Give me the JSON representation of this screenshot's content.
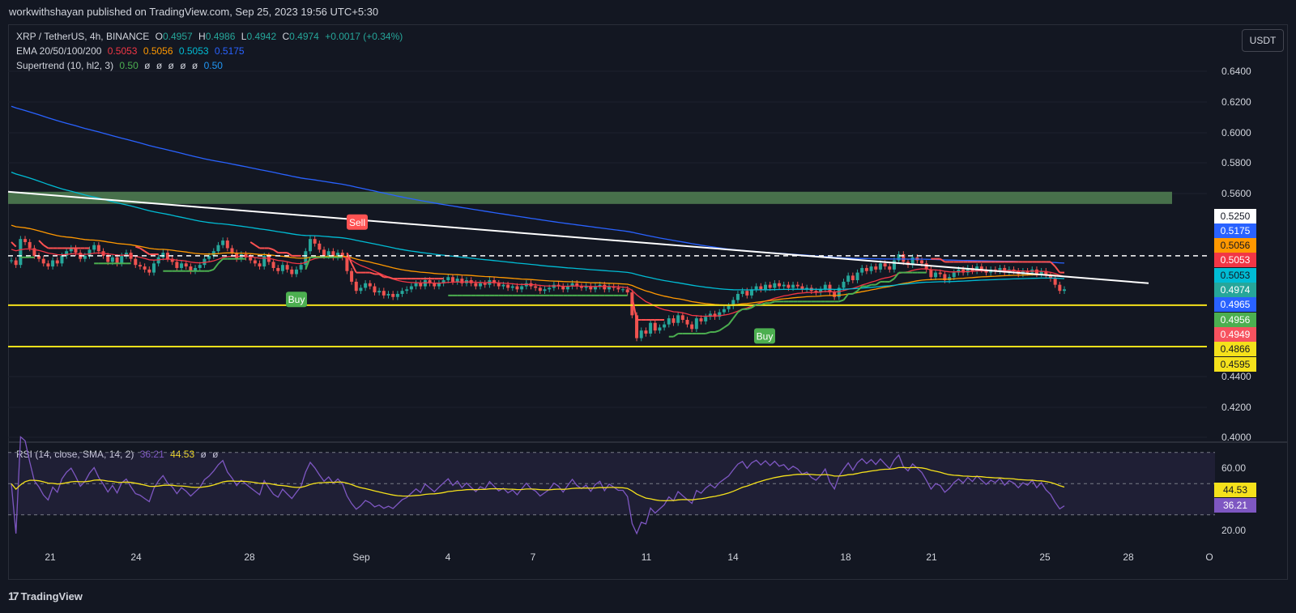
{
  "publish_line": "workwithshayan published on TradingView.com, Sep 25, 2023 19:56 UTC+5:30",
  "legend": {
    "symbol": "XRP / TetherUS, 4h, BINANCE",
    "o_label": "O",
    "o_val": "0.4957",
    "h_label": "H",
    "h_val": "0.4986",
    "l_label": "L",
    "l_val": "0.4942",
    "c_label": "C",
    "c_val": "0.4974",
    "change": "+0.0017 (+0.34%)",
    "ema_label": "EMA 20/50/100/200",
    "ema_vals": [
      "0.5053",
      "0.5056",
      "0.5053",
      "0.5175"
    ],
    "supertrend_label": "Supertrend (10, hl2, 3)",
    "supertrend_vals": [
      "0.50",
      "ø",
      "ø",
      "ø",
      "ø",
      "ø",
      "0.50"
    ],
    "rsi_label": "RSI (14, close, SMA, 14, 2)",
    "rsi_vals": [
      "36.21",
      "44.53",
      "ø",
      "ø"
    ]
  },
  "currency_button": "USDT",
  "footer_brand": "TradingView",
  "colors": {
    "bg": "#131722",
    "up": "#26a69a",
    "down": "#ef5350",
    "ema20": "#f23645",
    "ema50": "#ff9800",
    "ema100": "#00bcd4",
    "ema200": "#2962ff",
    "supertrend_up": "#4caf50",
    "supertrend_down": "#ff5252",
    "trendline": "#ffffff",
    "support": "#f5e11b",
    "rsi": "#7e57c2",
    "rsi_ma": "#f5e11b"
  },
  "chart_data": {
    "type": "candlestick",
    "y_axis": {
      "ticks": [
        "0.6400",
        "0.6200",
        "0.6000",
        "0.5800",
        "0.5600",
        "0.4400",
        "0.4200",
        "0.4000"
      ],
      "ylim": [
        0.3995,
        0.665
      ]
    },
    "x_axis": {
      "ticks": [
        "21",
        "24",
        "28",
        "Sep",
        "4",
        "7",
        "11",
        "14",
        "18",
        "21",
        "25",
        "28",
        "O"
      ]
    },
    "price_labels": [
      {
        "value": "0.5250",
        "color": "#ffffff",
        "text": "#131722"
      },
      {
        "value": "0.5175",
        "color": "#2962ff",
        "text": "#ffffff"
      },
      {
        "value": "0.5056",
        "color": "#ff9800",
        "text": "#131722"
      },
      {
        "value": "0.5053",
        "color": "#f23645",
        "text": "#ffffff"
      },
      {
        "value": "0.5053",
        "color": "#00bcd4",
        "text": "#131722"
      },
      {
        "value": "0.4974",
        "color": "#26a69a",
        "text": "#ffffff"
      },
      {
        "value": "0.4965",
        "color": "#2962ff",
        "text": "#ffffff"
      },
      {
        "value": "0.4956",
        "color": "#4caf50",
        "text": "#ffffff"
      },
      {
        "value": "0.4949",
        "color": "#f7525f",
        "text": "#ffffff"
      },
      {
        "value": "0.4866",
        "color": "#f5e11b",
        "text": "#131722"
      },
      {
        "value": "0.4595",
        "color": "#f5e11b",
        "text": "#131722"
      }
    ],
    "signals": [
      {
        "label": "Buy",
        "type": "buy"
      },
      {
        "label": "Sell",
        "type": "sell"
      },
      {
        "label": "Buy",
        "type": "buy"
      }
    ],
    "resistance_zone": [
      0.553,
      0.561
    ],
    "support_levels": [
      0.4866,
      0.4595
    ],
    "dashed_level": 0.519,
    "close_series": [
      0.516,
      0.513,
      0.53,
      0.528,
      0.524,
      0.519,
      0.517,
      0.514,
      0.512,
      0.516,
      0.514,
      0.519,
      0.522,
      0.524,
      0.521,
      0.517,
      0.519,
      0.523,
      0.526,
      0.522,
      0.519,
      0.515,
      0.518,
      0.514,
      0.519,
      0.521,
      0.517,
      0.513,
      0.512,
      0.51,
      0.508,
      0.514,
      0.518,
      0.521,
      0.517,
      0.515,
      0.511,
      0.514,
      0.512,
      0.509,
      0.511,
      0.513,
      0.517,
      0.519,
      0.522,
      0.526,
      0.529,
      0.524,
      0.521,
      0.517,
      0.52,
      0.518,
      0.516,
      0.514,
      0.512,
      0.519,
      0.515,
      0.511,
      0.509,
      0.513,
      0.51,
      0.507,
      0.51,
      0.513,
      0.522,
      0.53,
      0.527,
      0.523,
      0.519,
      0.522,
      0.518,
      0.521,
      0.518,
      0.509,
      0.502,
      0.496,
      0.498,
      0.501,
      0.499,
      0.495,
      0.496,
      0.493,
      0.494,
      0.492,
      0.494,
      0.496,
      0.497,
      0.499,
      0.501,
      0.499,
      0.503,
      0.501,
      0.499,
      0.501,
      0.503,
      0.505,
      0.502,
      0.504,
      0.501,
      0.503,
      0.501,
      0.499,
      0.501,
      0.5,
      0.503,
      0.501,
      0.499,
      0.5,
      0.498,
      0.499,
      0.497,
      0.499,
      0.501,
      0.499,
      0.498,
      0.496,
      0.497,
      0.498,
      0.5,
      0.499,
      0.497,
      0.499,
      0.501,
      0.499,
      0.498,
      0.499,
      0.497,
      0.499,
      0.5,
      0.497,
      0.499,
      0.498,
      0.497,
      0.497,
      0.495,
      0.48,
      0.465,
      0.47,
      0.468,
      0.475,
      0.47,
      0.472,
      0.474,
      0.478,
      0.475,
      0.48,
      0.477,
      0.474,
      0.471,
      0.478,
      0.476,
      0.479,
      0.481,
      0.479,
      0.482,
      0.484,
      0.486,
      0.49,
      0.494,
      0.496,
      0.493,
      0.497,
      0.499,
      0.497,
      0.5,
      0.498,
      0.501,
      0.499,
      0.5,
      0.498,
      0.5,
      0.499,
      0.497,
      0.498,
      0.496,
      0.495,
      0.497,
      0.5,
      0.495,
      0.492,
      0.498,
      0.502,
      0.506,
      0.503,
      0.508,
      0.511,
      0.509,
      0.512,
      0.51,
      0.514,
      0.512,
      0.51,
      0.516,
      0.52,
      0.515,
      0.513,
      0.518,
      0.516,
      0.514,
      0.51,
      0.505,
      0.508,
      0.507,
      0.503,
      0.505,
      0.508,
      0.51,
      0.508,
      0.511,
      0.509,
      0.512,
      0.51,
      0.508,
      0.51,
      0.509,
      0.511,
      0.508,
      0.51,
      0.509,
      0.507,
      0.509,
      0.508,
      0.51,
      0.507,
      0.509,
      0.506,
      0.504,
      0.5,
      0.496,
      0.497
    ]
  }
}
